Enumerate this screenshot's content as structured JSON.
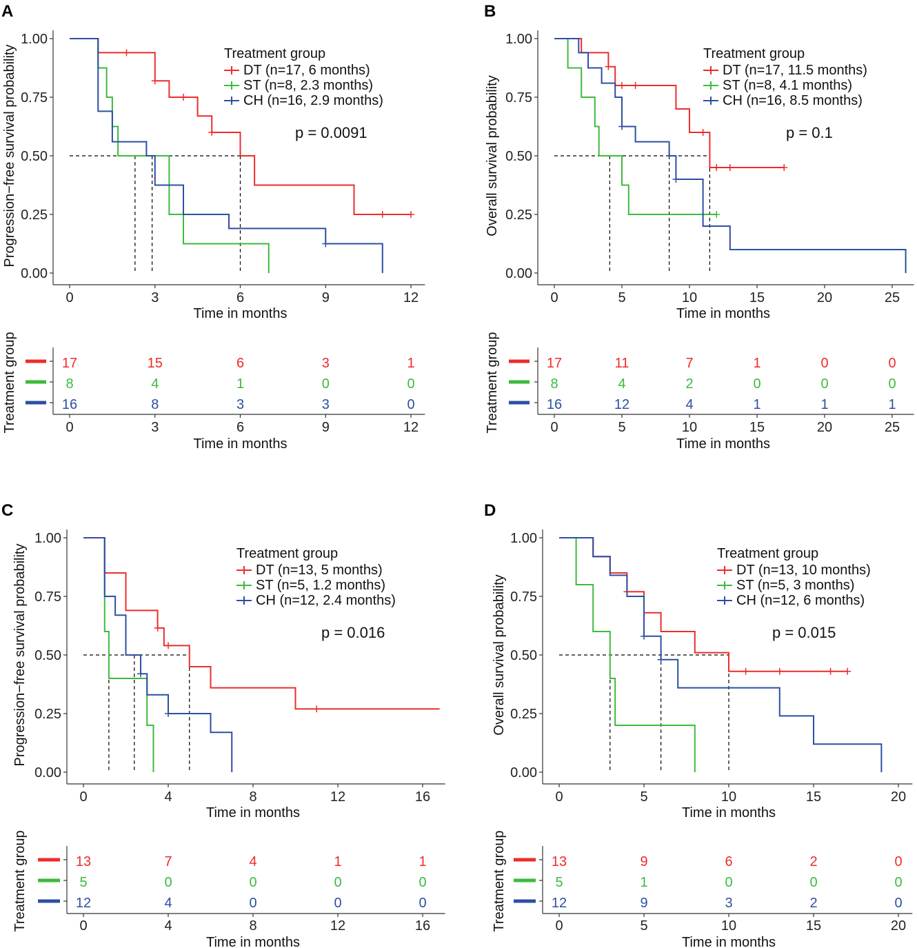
{
  "chart_data": [
    {
      "panel_label": "A",
      "type": "line",
      "subtype": "kaplan-meier",
      "ylabel": "Progression−free survival probability",
      "xlabel": "Time in months",
      "xlim": [
        0,
        12.3
      ],
      "xticks": [
        0,
        3,
        6,
        9,
        12
      ],
      "ylim": [
        0,
        1
      ],
      "yticks": [
        "0.00",
        "0.25",
        "0.50",
        "0.75",
        "1.00"
      ],
      "legend_title": "Treatment group",
      "pvalue": "p = 0.0091",
      "median_line": [
        0.5,
        6
      ],
      "series": [
        {
          "name": "DT (n=17, 6 months)",
          "color": "#EE2B2B",
          "median": 6,
          "steps": [
            [
              0,
              1
            ],
            [
              1,
              0.94
            ],
            [
              3,
              0.82
            ],
            [
              3.5,
              0.75
            ],
            [
              4.5,
              0.67
            ],
            [
              5,
              0.6
            ],
            [
              6,
              0.5
            ],
            [
              6.5,
              0.375
            ],
            [
              10,
              0.25
            ],
            [
              12,
              0.25
            ]
          ],
          "censors": [
            [
              2,
              0.94
            ],
            [
              3,
              0.82
            ],
            [
              4,
              0.75
            ],
            [
              5,
              0.6
            ],
            [
              11,
              0.25
            ],
            [
              12,
              0.25
            ]
          ]
        },
        {
          "name": "ST (n=8, 2.3 months)",
          "color": "#3DBA3D",
          "median": 2.3,
          "steps": [
            [
              0,
              1
            ],
            [
              1,
              0.875
            ],
            [
              1.3,
              0.75
            ],
            [
              1.5,
              0.625
            ],
            [
              1.7,
              0.5
            ],
            [
              3.5,
              0.25
            ],
            [
              4,
              0.125
            ],
            [
              7,
              0
            ]
          ],
          "censors": []
        },
        {
          "name": "CH (n=16, 2.9 months)",
          "color": "#2D4EA2",
          "median": 2.9,
          "steps": [
            [
              0,
              1
            ],
            [
              1,
              0.69
            ],
            [
              1.5,
              0.56
            ],
            [
              2.7,
              0.5
            ],
            [
              3,
              0.375
            ],
            [
              4,
              0.25
            ],
            [
              5.6,
              0.19
            ],
            [
              9,
              0.125
            ],
            [
              11,
              0
            ]
          ],
          "censors": [
            [
              9,
              0.125
            ]
          ]
        }
      ],
      "risk_table": {
        "ylabel": "Treatment group",
        "xlabel": "Time in months",
        "times": [
          0,
          3,
          6,
          9,
          12
        ],
        "rows": [
          {
            "color": "#EE2B2B",
            "counts": [
              "17",
              "15",
              "6",
              "3",
              "1"
            ]
          },
          {
            "color": "#3DBA3D",
            "counts": [
              "8",
              "4",
              "1",
              "0",
              "0"
            ]
          },
          {
            "color": "#2D4EA2",
            "counts": [
              "16",
              "8",
              "3",
              "3",
              "0"
            ]
          }
        ]
      }
    },
    {
      "panel_label": "B",
      "type": "line",
      "subtype": "kaplan-meier",
      "ylabel": "Overall survival probability",
      "xlabel": "Time in months",
      "xlim": [
        0,
        26.2
      ],
      "xticks": [
        0,
        5,
        10,
        15,
        20,
        25
      ],
      "ylim": [
        0,
        1
      ],
      "yticks": [
        "0.00",
        "0.25",
        "0.50",
        "0.75",
        "1.00"
      ],
      "legend_title": "Treatment group",
      "pvalue": "p = 0.1",
      "median_line": [
        0.5,
        11.5
      ],
      "series": [
        {
          "name": "DT (n=17, 11.5 months)",
          "color": "#EE2B2B",
          "median": 11.5,
          "steps": [
            [
              0,
              1
            ],
            [
              2,
              0.94
            ],
            [
              4,
              0.88
            ],
            [
              4.5,
              0.8
            ],
            [
              9,
              0.7
            ],
            [
              10,
              0.6
            ],
            [
              11.5,
              0.45
            ],
            [
              17,
              0.45
            ]
          ],
          "censors": [
            [
              4,
              0.88
            ],
            [
              5,
              0.8
            ],
            [
              6,
              0.8
            ],
            [
              11,
              0.6
            ],
            [
              12,
              0.45
            ],
            [
              13,
              0.45
            ],
            [
              17,
              0.45
            ]
          ]
        },
        {
          "name": "ST (n=8, 4.1 months)",
          "color": "#3DBA3D",
          "median": 4.1,
          "steps": [
            [
              0,
              1
            ],
            [
              1,
              0.875
            ],
            [
              2,
              0.75
            ],
            [
              3,
              0.625
            ],
            [
              3.3,
              0.5
            ],
            [
              5,
              0.375
            ],
            [
              5.5,
              0.25
            ],
            [
              12,
              0.25
            ]
          ],
          "censors": [
            [
              12,
              0.25
            ]
          ]
        },
        {
          "name": "CH (n=16, 8.5 months)",
          "color": "#2D4EA2",
          "median": 8.5,
          "steps": [
            [
              0,
              1
            ],
            [
              1.8,
              0.94
            ],
            [
              2.5,
              0.875
            ],
            [
              3.5,
              0.81
            ],
            [
              4.5,
              0.75
            ],
            [
              5,
              0.625
            ],
            [
              6,
              0.56
            ],
            [
              8.5,
              0.5
            ],
            [
              9,
              0.4
            ],
            [
              11,
              0.2
            ],
            [
              13,
              0.1
            ],
            [
              26,
              0
            ]
          ],
          "censors": [
            [
              5,
              0.625
            ],
            [
              9,
              0.4
            ]
          ]
        }
      ],
      "risk_table": {
        "ylabel": "Treatment group",
        "xlabel": "Time in months",
        "times": [
          0,
          5,
          10,
          15,
          20,
          25
        ],
        "rows": [
          {
            "color": "#EE2B2B",
            "counts": [
              "17",
              "11",
              "7",
              "1",
              "0",
              "0"
            ]
          },
          {
            "color": "#3DBA3D",
            "counts": [
              "8",
              "4",
              "2",
              "0",
              "0",
              "0"
            ]
          },
          {
            "color": "#2D4EA2",
            "counts": [
              "16",
              "12",
              "4",
              "1",
              "1",
              "1"
            ]
          }
        ]
      }
    },
    {
      "panel_label": "C",
      "type": "line",
      "subtype": "kaplan-meier",
      "ylabel": "Progression−free survival probability",
      "xlabel": "Time in months",
      "xlim": [
        0,
        16.8
      ],
      "xticks": [
        0,
        4,
        8,
        12,
        16
      ],
      "ylim": [
        0,
        1
      ],
      "yticks": [
        "0.00",
        "0.25",
        "0.50",
        "0.75",
        "1.00"
      ],
      "legend_title": "Treatment group",
      "pvalue": "p = 0.016",
      "median_line": [
        0.5,
        5
      ],
      "series": [
        {
          "name": "DT (n=13, 5 months)",
          "color": "#EE2B2B",
          "median": 5,
          "steps": [
            [
              0,
              1
            ],
            [
              1,
              0.85
            ],
            [
              2,
              0.69
            ],
            [
              3.5,
              0.615
            ],
            [
              3.8,
              0.54
            ],
            [
              5,
              0.45
            ],
            [
              6,
              0.36
            ],
            [
              10,
              0.27
            ],
            [
              16.8,
              0.27
            ]
          ],
          "censors": [
            [
              3.5,
              0.615
            ],
            [
              4,
              0.54
            ],
            [
              11,
              0.27
            ]
          ]
        },
        {
          "name": "ST (n=5, 1.2 months)",
          "color": "#3DBA3D",
          "median": 1.2,
          "steps": [
            [
              0,
              1
            ],
            [
              1,
              0.6
            ],
            [
              1.2,
              0.4
            ],
            [
              3,
              0.2
            ],
            [
              3.3,
              0
            ]
          ],
          "censors": []
        },
        {
          "name": "CH (n=12, 2.4 months)",
          "color": "#2D4EA2",
          "median": 2.4,
          "steps": [
            [
              0,
              1
            ],
            [
              1,
              0.75
            ],
            [
              1.5,
              0.67
            ],
            [
              2,
              0.5
            ],
            [
              2.7,
              0.42
            ],
            [
              3,
              0.33
            ],
            [
              4,
              0.25
            ],
            [
              6,
              0.17
            ],
            [
              7,
              0
            ]
          ],
          "censors": [
            [
              2.7,
              0.42
            ],
            [
              4,
              0.25
            ]
          ]
        }
      ],
      "risk_table": {
        "ylabel": "Treatment group",
        "xlabel": "Time in months",
        "times": [
          0,
          4,
          8,
          12,
          16
        ],
        "rows": [
          {
            "color": "#EE2B2B",
            "counts": [
              "13",
              "7",
              "4",
              "1",
              "1"
            ]
          },
          {
            "color": "#3DBA3D",
            "counts": [
              "5",
              "0",
              "0",
              "0",
              "0"
            ]
          },
          {
            "color": "#2D4EA2",
            "counts": [
              "12",
              "4",
              "0",
              "0",
              "0"
            ]
          }
        ]
      }
    },
    {
      "panel_label": "D",
      "type": "line",
      "subtype": "kaplan-meier",
      "ylabel": "Overall survival probability",
      "xlabel": "Time in months",
      "xlim": [
        0,
        20.5
      ],
      "xticks": [
        0,
        5,
        10,
        15,
        20
      ],
      "ylim": [
        0,
        1
      ],
      "yticks": [
        "0.00",
        "0.25",
        "0.50",
        "0.75",
        "1.00"
      ],
      "legend_title": "Treatment group",
      "pvalue": "p = 0.015",
      "median_line": [
        0.5,
        10
      ],
      "series": [
        {
          "name": "DT (n=13, 10 months)",
          "color": "#EE2B2B",
          "median": 10,
          "steps": [
            [
              0,
              1
            ],
            [
              2,
              0.92
            ],
            [
              3,
              0.85
            ],
            [
              4,
              0.77
            ],
            [
              5,
              0.68
            ],
            [
              6,
              0.6
            ],
            [
              8,
              0.51
            ],
            [
              10,
              0.43
            ],
            [
              17,
              0.43
            ]
          ],
          "censors": [
            [
              4,
              0.77
            ],
            [
              11,
              0.43
            ],
            [
              13,
              0.43
            ],
            [
              16,
              0.43
            ],
            [
              17,
              0.43
            ]
          ]
        },
        {
          "name": "ST (n=5, 3 months)",
          "color": "#3DBA3D",
          "median": 3,
          "steps": [
            [
              0,
              1
            ],
            [
              1,
              0.8
            ],
            [
              2,
              0.6
            ],
            [
              3,
              0.4
            ],
            [
              3.3,
              0.2
            ],
            [
              8,
              0
            ]
          ],
          "censors": []
        },
        {
          "name": "CH (n=12, 6 months)",
          "color": "#2D4EA2",
          "median": 6,
          "steps": [
            [
              0,
              1
            ],
            [
              2,
              0.92
            ],
            [
              3,
              0.84
            ],
            [
              4,
              0.75
            ],
            [
              5,
              0.58
            ],
            [
              6,
              0.48
            ],
            [
              7,
              0.36
            ],
            [
              13,
              0.24
            ],
            [
              15,
              0.12
            ],
            [
              19,
              0
            ]
          ],
          "censors": [
            [
              5,
              0.58
            ],
            [
              6,
              0.48
            ]
          ]
        }
      ],
      "risk_table": {
        "ylabel": "Treatment group",
        "xlabel": "Time in months",
        "times": [
          0,
          5,
          10,
          15,
          20
        ],
        "rows": [
          {
            "color": "#EE2B2B",
            "counts": [
              "13",
              "9",
              "6",
              "2",
              "0"
            ]
          },
          {
            "color": "#3DBA3D",
            "counts": [
              "5",
              "1",
              "0",
              "0",
              "0"
            ]
          },
          {
            "color": "#2D4EA2",
            "counts": [
              "12",
              "9",
              "3",
              "2",
              "0"
            ]
          }
        ]
      }
    }
  ]
}
